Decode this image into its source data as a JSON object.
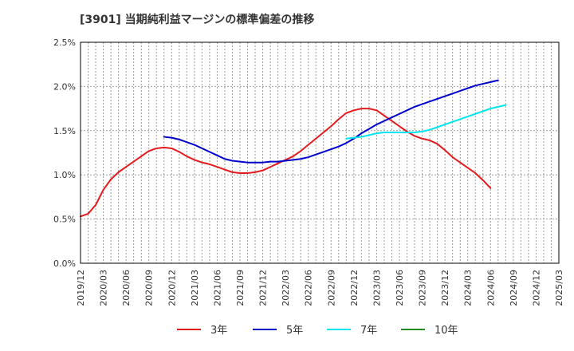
{
  "chart_data": {
    "type": "line",
    "title": "[3901]  当期純利益マージンの標準偏差の推移",
    "ylim": [
      0,
      0.025
    ],
    "y_ticks": [
      0,
      0.005,
      0.01,
      0.015,
      0.02,
      0.025
    ],
    "y_tick_labels": [
      "0.0%",
      "0.5%",
      "1.0%",
      "1.5%",
      "2.0%",
      "2.5%"
    ],
    "x_tick_labels": [
      "2019/12",
      "2020/03",
      "2020/06",
      "2020/09",
      "2020/12",
      "2021/03",
      "2021/06",
      "2021/09",
      "2021/12",
      "2022/03",
      "2022/06",
      "2022/09",
      "2022/12",
      "2023/03",
      "2023/06",
      "2023/09",
      "2023/12",
      "2024/03",
      "2024/06",
      "2024/09",
      "2024/12",
      "2025/03"
    ],
    "x_start": "2019/12",
    "x_end": "2025/03",
    "grid": true,
    "legend_position": "bottom",
    "series": [
      {
        "name": "3年",
        "color": "#e41a1c",
        "start": "2019/12",
        "values": [
          0.0053,
          0.0056,
          0.0066,
          0.0083,
          0.0095,
          0.0103,
          0.0109,
          0.0115,
          0.0121,
          0.0127,
          0.013,
          0.0131,
          0.013,
          0.0126,
          0.0121,
          0.0117,
          0.0114,
          0.0112,
          0.0109,
          0.0106,
          0.0103,
          0.0102,
          0.0102,
          0.0103,
          0.0105,
          0.0109,
          0.0113,
          0.0117,
          0.0121,
          0.0127,
          0.0134,
          0.0141,
          0.0148,
          0.0155,
          0.0163,
          0.017,
          0.0173,
          0.0175,
          0.0175,
          0.0173,
          0.0167,
          0.0161,
          0.0155,
          0.0149,
          0.0144,
          0.0141,
          0.0139,
          0.0135,
          0.0128,
          0.012,
          0.0114,
          0.0108,
          0.0102,
          0.0094,
          0.0085
        ]
      },
      {
        "name": "5年",
        "color": "#0000cc",
        "start": "2020/11",
        "values": [
          0.0143,
          0.0142,
          0.014,
          0.0137,
          0.0134,
          0.013,
          0.0126,
          0.0122,
          0.0118,
          0.0116,
          0.0115,
          0.0114,
          0.0114,
          0.0114,
          0.0115,
          0.0115,
          0.0116,
          0.0117,
          0.0118,
          0.012,
          0.0123,
          0.0126,
          0.0129,
          0.0132,
          0.0136,
          0.0141,
          0.0147,
          0.0152,
          0.0157,
          0.0161,
          0.0165,
          0.0169,
          0.0173,
          0.0177,
          0.018,
          0.0183,
          0.0186,
          0.0189,
          0.0192,
          0.0195,
          0.0198,
          0.0201,
          0.0203,
          0.0205,
          0.0207
        ]
      },
      {
        "name": "7年",
        "color": "#00e5ee",
        "start": "2022/11",
        "values": [
          0.0141,
          0.0142,
          0.0143,
          0.0145,
          0.0147,
          0.0148,
          0.0148,
          0.0148,
          0.0148,
          0.0148,
          0.0149,
          0.0151,
          0.0154,
          0.0157,
          0.016,
          0.0163,
          0.0166,
          0.0169,
          0.0172,
          0.0175,
          0.0177,
          0.0179
        ]
      },
      {
        "name": "10年",
        "color": "#228b22",
        "start": "2019/12",
        "values": []
      }
    ]
  }
}
